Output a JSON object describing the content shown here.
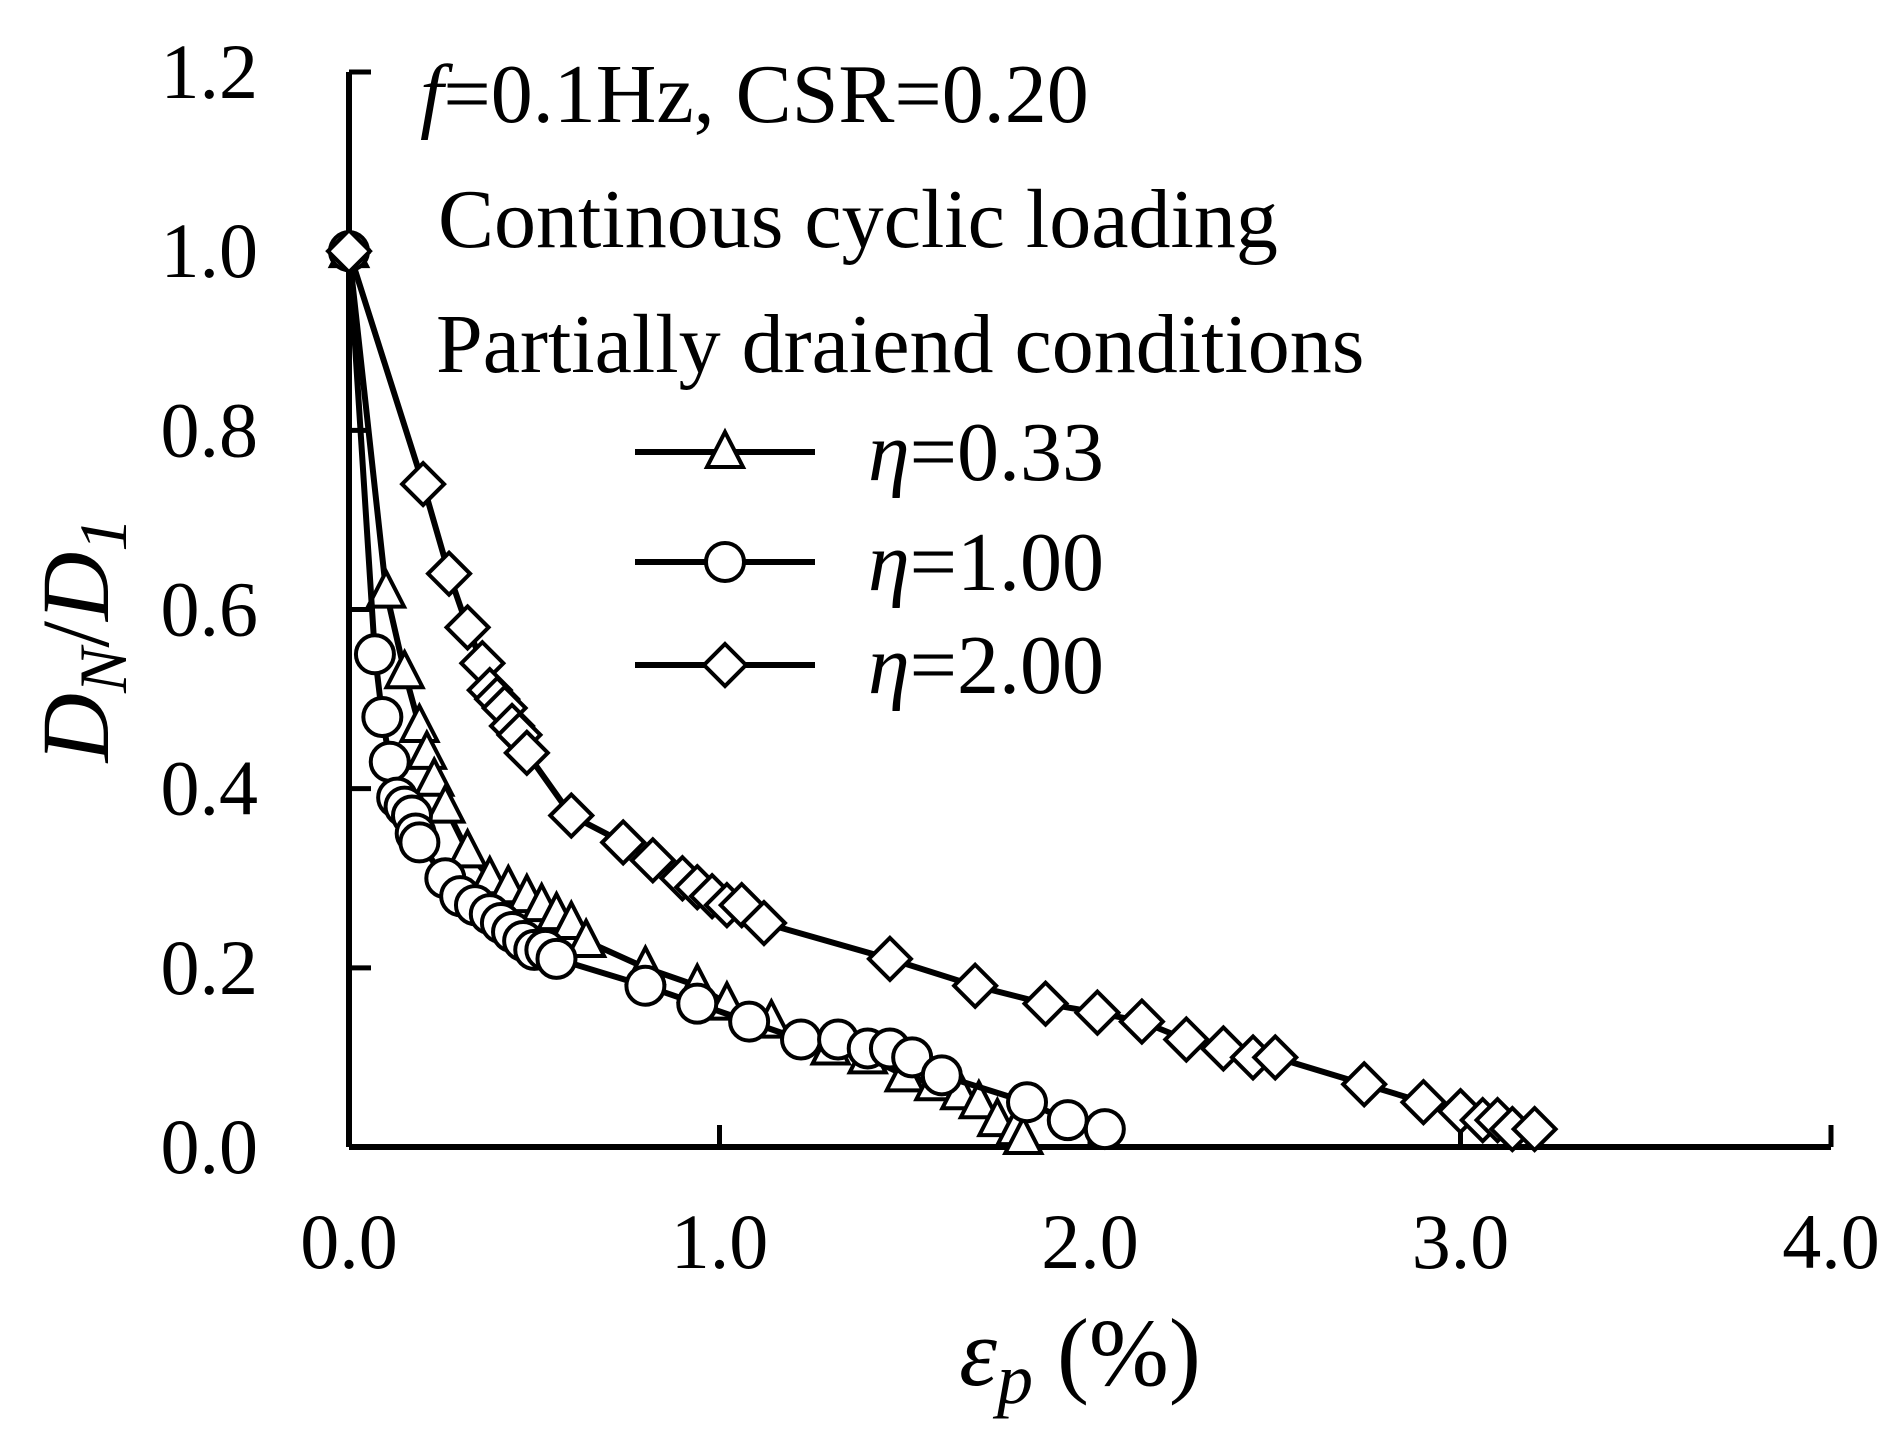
{
  "chart_data": {
    "type": "line",
    "title": "",
    "annotations": {
      "line1_prefix": "f",
      "line1_rest": "=0.1Hz,  CSR=0.20",
      "line2": "Continous cyclic loading",
      "line3": "Partially draiend conditions"
    },
    "xlabel": {
      "symbol": "ε",
      "sub": "p",
      "unit": " (%)"
    },
    "ylabel": {
      "d": "D",
      "sub_n": "N",
      "slash": "/",
      "d2": "D",
      "sub_1": "1"
    },
    "xlim": [
      0,
      4
    ],
    "ylim": [
      0,
      1.2
    ],
    "xticks": [
      0.0,
      1.0,
      2.0,
      3.0,
      4.0
    ],
    "yticks": [
      0.0,
      0.2,
      0.4,
      0.6,
      0.8,
      1.0,
      1.2
    ],
    "xtick_labels": [
      "0.0",
      "1.0",
      "2.0",
      "3.0",
      "4.0"
    ],
    "ytick_labels": [
      "0.0",
      "0.2",
      "0.4",
      "0.6",
      "0.8",
      "1.0",
      "1.2"
    ],
    "legend_position": "upper-middle",
    "series": [
      {
        "name": "η=0.33",
        "eta": "η",
        "value": "=0.33",
        "marker": "triangle",
        "x": [
          0.0,
          0.1,
          0.15,
          0.19,
          0.21,
          0.23,
          0.26,
          0.32,
          0.38,
          0.43,
          0.48,
          0.52,
          0.56,
          0.6,
          0.64,
          0.8,
          0.94,
          1.02,
          1.14,
          1.3,
          1.4,
          1.5,
          1.58,
          1.65,
          1.7,
          1.75,
          1.8,
          1.82
        ],
        "y": [
          1.0,
          0.62,
          0.53,
          0.47,
          0.44,
          0.41,
          0.38,
          0.33,
          0.3,
          0.29,
          0.28,
          0.27,
          0.26,
          0.25,
          0.23,
          0.2,
          0.18,
          0.16,
          0.14,
          0.11,
          0.1,
          0.08,
          0.07,
          0.06,
          0.05,
          0.03,
          0.02,
          0.01
        ]
      },
      {
        "name": "η=1.00",
        "eta": "η",
        "value": "=1.00",
        "marker": "circle",
        "x": [
          0.0,
          0.07,
          0.09,
          0.11,
          0.13,
          0.15,
          0.17,
          0.18,
          0.19,
          0.26,
          0.3,
          0.34,
          0.38,
          0.41,
          0.44,
          0.47,
          0.5,
          0.53,
          0.56,
          0.8,
          0.94,
          1.08,
          1.22,
          1.32,
          1.4,
          1.46,
          1.52,
          1.6,
          1.83,
          1.94,
          2.04
        ],
        "y": [
          1.0,
          0.55,
          0.48,
          0.43,
          0.39,
          0.38,
          0.37,
          0.35,
          0.34,
          0.3,
          0.28,
          0.27,
          0.26,
          0.25,
          0.24,
          0.23,
          0.22,
          0.22,
          0.21,
          0.18,
          0.16,
          0.14,
          0.12,
          0.12,
          0.11,
          0.11,
          0.1,
          0.08,
          0.05,
          0.03,
          0.02
        ]
      },
      {
        "name": "η=2.00",
        "eta": "η",
        "value": "=2.00",
        "marker": "diamond",
        "x": [
          0.0,
          0.2,
          0.27,
          0.32,
          0.36,
          0.38,
          0.4,
          0.42,
          0.44,
          0.46,
          0.48,
          0.6,
          0.74,
          0.82,
          0.9,
          0.94,
          0.98,
          1.02,
          1.06,
          1.12,
          1.46,
          1.69,
          1.88,
          2.02,
          2.14,
          2.26,
          2.36,
          2.44,
          2.5,
          2.74,
          2.9,
          3.0,
          3.06,
          3.1,
          3.14,
          3.2
        ],
        "y": [
          1.0,
          0.74,
          0.64,
          0.58,
          0.54,
          0.51,
          0.5,
          0.49,
          0.47,
          0.46,
          0.44,
          0.37,
          0.34,
          0.32,
          0.3,
          0.29,
          0.28,
          0.27,
          0.27,
          0.25,
          0.21,
          0.18,
          0.16,
          0.15,
          0.14,
          0.12,
          0.11,
          0.1,
          0.1,
          0.07,
          0.05,
          0.04,
          0.03,
          0.03,
          0.02,
          0.02
        ]
      }
    ]
  }
}
